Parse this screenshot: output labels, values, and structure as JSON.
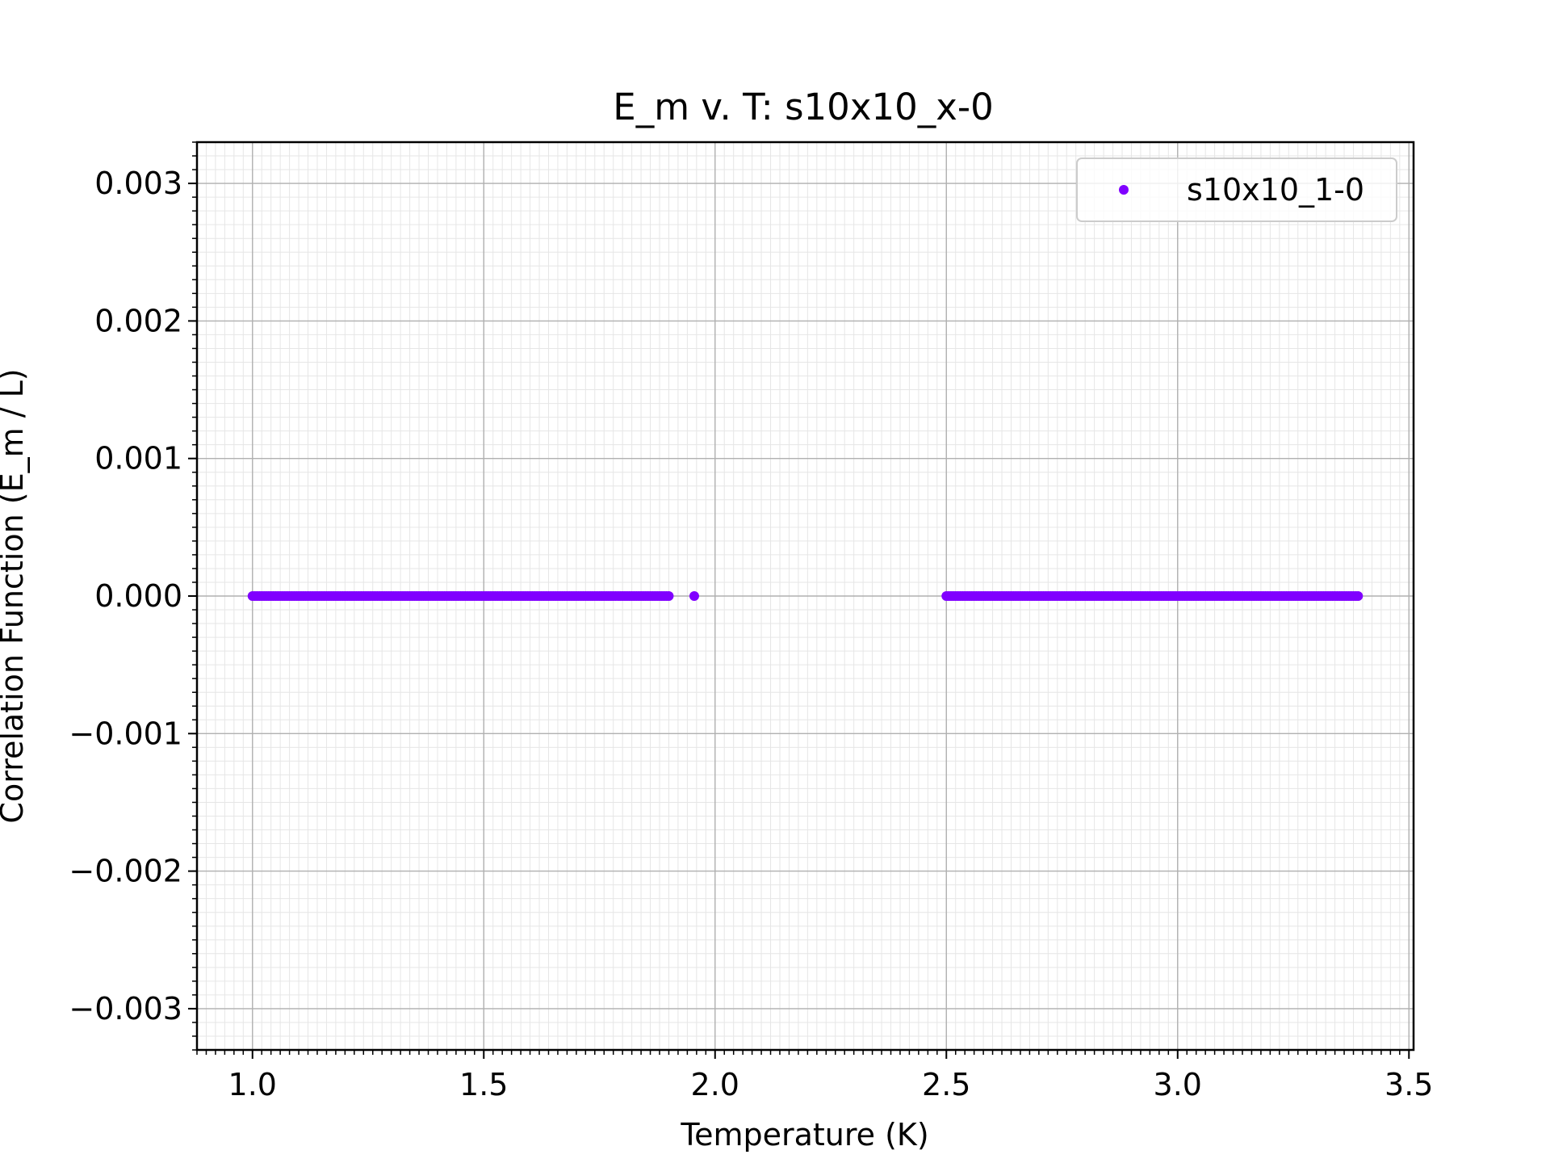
{
  "chart_data": {
    "type": "scatter",
    "title": "E_m v. T: s10x10_x-0",
    "xlabel": "Temperature (K)",
    "ylabel": "Correlation Function (E_m / L)",
    "xlim": [
      0.88,
      3.51
    ],
    "ylim": [
      -0.0033,
      0.0033
    ],
    "grid": true,
    "minor_grid": true,
    "legend_position": "top-right",
    "xticks": [
      1.0,
      1.5,
      2.0,
      2.5,
      3.0,
      3.5
    ],
    "xtick_labels": [
      "1.0",
      "1.5",
      "2.0",
      "2.5",
      "3.0",
      "3.5"
    ],
    "yticks": [
      0.003,
      0.002,
      0.001,
      0.0,
      -0.001,
      -0.002,
      -0.003
    ],
    "ytick_labels": [
      "0.003",
      "0.002",
      "0.001",
      "0.000",
      "−0.001",
      "−0.002",
      "−0.003"
    ],
    "series": [
      {
        "name": "s10x10_1-0",
        "color": "#8000ff",
        "segments": [
          {
            "x_start": 1.0,
            "x_end": 1.9,
            "step": 0.005,
            "y": 0.0
          },
          {
            "x_start": 1.955,
            "x_end": 1.955,
            "step": 0.005,
            "y": 0.0
          },
          {
            "x_start": 2.5,
            "x_end": 3.39,
            "step": 0.005,
            "y": 0.0
          }
        ]
      }
    ]
  }
}
